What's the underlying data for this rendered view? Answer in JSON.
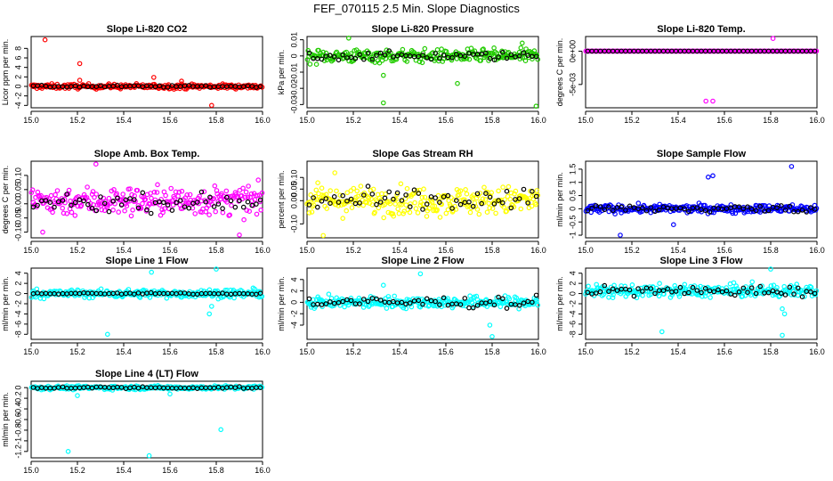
{
  "figure_title": "FEF_070115  2.5 Min. Slope Diagnostics",
  "chart_data": [
    {
      "type": "scatter",
      "title": "Slope Li-820 CO2",
      "ylabel": "Licor ppm per min.",
      "xlim": [
        15.0,
        16.0
      ],
      "ylim": [
        -4.5,
        10.5
      ],
      "yticks": [
        -4,
        -2,
        0,
        2,
        4,
        6,
        8
      ],
      "xticks": [
        15.0,
        15.2,
        15.4,
        15.6,
        15.8,
        16.0
      ],
      "color": "#ff0000",
      "band_center": 0.0,
      "band_spread": 0.5,
      "black_center": 0.0,
      "black_spread": 0.2,
      "outliers": [
        [
          15.06,
          9.8
        ],
        [
          15.21,
          4.8
        ],
        [
          15.53,
          1.9
        ],
        [
          15.78,
          -4.0
        ],
        [
          15.21,
          1.3
        ],
        [
          15.65,
          1.1
        ]
      ]
    },
    {
      "type": "scatter",
      "title": "Slope Li-820 Pressure",
      "ylabel": "kPa per min.",
      "xlim": [
        15.0,
        16.0
      ],
      "ylim": [
        -0.032,
        0.012
      ],
      "yticks": [
        -0.03,
        -0.02,
        -0.01,
        0.0,
        0.01
      ],
      "xticks": [
        15.0,
        15.2,
        15.4,
        15.6,
        15.8,
        16.0
      ],
      "color": "#22cc00",
      "band_center": 0.0,
      "band_spread": 0.004,
      "black_center": 0.0,
      "black_spread": 0.0025,
      "outliers": [
        [
          15.33,
          -0.029
        ],
        [
          15.99,
          -0.031
        ],
        [
          15.93,
          0.008
        ],
        [
          15.18,
          0.011
        ],
        [
          15.33,
          -0.012
        ],
        [
          15.65,
          -0.017
        ]
      ]
    },
    {
      "type": "scatter",
      "title": "Slope Li-820 Temp.",
      "ylabel": "degrees C per min.",
      "xlim": [
        15.0,
        16.0
      ],
      "ylim": [
        -0.0085,
        0.0022
      ],
      "yticks": [
        -0.005,
        0.0
      ],
      "ytick_labels": [
        "-5e-03",
        "0e+00"
      ],
      "xticks": [
        15.0,
        15.2,
        15.4,
        15.6,
        15.8,
        16.0
      ],
      "color": "#ff00ff",
      "band_center": 0.0,
      "band_spread": 0.0,
      "black_center": 0.0,
      "black_spread": 0.0,
      "outliers": [
        [
          15.52,
          -0.0075
        ],
        [
          15.55,
          -0.0075
        ],
        [
          15.81,
          0.0019
        ]
      ]
    },
    {
      "type": "scatter",
      "title": "Slope Amb. Box Temp.",
      "ylabel": "degrees C per min.",
      "xlim": [
        15.0,
        16.0
      ],
      "ylim": [
        -0.12,
        0.15
      ],
      "yticks": [
        -0.1,
        -0.05,
        0.0,
        0.05,
        0.1
      ],
      "ytick_labels": [
        "-0.10",
        "-0.05",
        "0.00",
        "0.05",
        "0.10"
      ],
      "xticks": [
        15.0,
        15.2,
        15.4,
        15.6,
        15.8,
        16.0
      ],
      "color": "#ff00ff",
      "band_center": 0.01,
      "band_spread": 0.05,
      "black_center": 0.005,
      "black_spread": 0.03,
      "outliers": [
        [
          15.28,
          0.14
        ],
        [
          15.9,
          -0.11
        ],
        [
          15.05,
          -0.1
        ]
      ]
    },
    {
      "type": "scatter",
      "title": "Slope Gas Stream RH",
      "ylabel": "percent per min.",
      "xlim": [
        15.0,
        16.0
      ],
      "ylim": [
        -0.16,
        0.17
      ],
      "yticks": [
        -0.1,
        0.0,
        0.05,
        0.1
      ],
      "ytick_labels": [
        "-0.10",
        "0.00",
        "0.05",
        "0.10"
      ],
      "xticks": [
        15.0,
        15.2,
        15.4,
        15.6,
        15.8,
        16.0
      ],
      "color": "#ffff00",
      "band_center": 0.0,
      "band_spread": 0.06,
      "black_center": 0.0,
      "black_spread": 0.05,
      "outliers": [
        [
          15.07,
          -0.15
        ],
        [
          15.12,
          0.12
        ]
      ]
    },
    {
      "type": "scatter",
      "title": "Slope Sample Flow",
      "ylabel": "ml/min per min.",
      "xlim": [
        15.0,
        16.0
      ],
      "ylim": [
        -1.1,
        1.8
      ],
      "yticks": [
        -1.0,
        -0.5,
        0.0,
        0.5,
        1.0,
        1.5
      ],
      "xticks": [
        15.0,
        15.2,
        15.4,
        15.6,
        15.8,
        16.0
      ],
      "color": "#0000ff",
      "band_center": 0.0,
      "band_spread": 0.15,
      "black_center": 0.0,
      "black_spread": 0.15,
      "outliers": [
        [
          15.53,
          1.2
        ],
        [
          15.55,
          1.25
        ],
        [
          15.89,
          1.6
        ],
        [
          15.15,
          -1.0
        ],
        [
          15.38,
          -0.6
        ]
      ]
    },
    {
      "type": "scatter",
      "title": "Slope Line 1 Flow",
      "ylabel": "ml/min per min.",
      "xlim": [
        15.0,
        16.0
      ],
      "ylim": [
        -9,
        5
      ],
      "yticks": [
        -8,
        -6,
        -4,
        -2,
        0,
        2,
        4
      ],
      "xticks": [
        15.0,
        15.2,
        15.4,
        15.6,
        15.8,
        16.0
      ],
      "color": "#00ffff",
      "band_center": 0.0,
      "band_spread": 0.8,
      "black_center": 0.0,
      "black_spread": 0.15,
      "outliers": [
        [
          15.33,
          -8.0
        ],
        [
          15.8,
          4.8
        ],
        [
          15.52,
          4.2
        ],
        [
          15.77,
          -4.0
        ],
        [
          15.78,
          -2.5
        ]
      ]
    },
    {
      "type": "scatter",
      "title": "Slope Line 2 Flow",
      "ylabel": "ml/min per min.",
      "xlim": [
        15.0,
        16.0
      ],
      "ylim": [
        -6.5,
        6
      ],
      "yticks": [
        -4,
        -2,
        0,
        2,
        4
      ],
      "xticks": [
        15.0,
        15.2,
        15.4,
        15.6,
        15.8,
        16.0
      ],
      "color": "#00ffff",
      "band_center": 0.0,
      "band_spread": 1.0,
      "black_center": 0.0,
      "black_spread": 1.0,
      "outliers": [
        [
          15.8,
          -6.0
        ],
        [
          15.49,
          5.0
        ],
        [
          15.33,
          3.0
        ],
        [
          15.79,
          -4.0
        ]
      ]
    },
    {
      "type": "scatter",
      "title": "Slope Line 3 Flow",
      "ylabel": "ml/min per min.",
      "xlim": [
        15.0,
        16.0
      ],
      "ylim": [
        -9,
        5
      ],
      "yticks": [
        -8,
        -6,
        -4,
        -2,
        0,
        2,
        4
      ],
      "xticks": [
        15.0,
        15.2,
        15.4,
        15.6,
        15.8,
        16.0
      ],
      "color": "#00ffff",
      "band_center": 0.5,
      "band_spread": 1.2,
      "black_center": 0.5,
      "black_spread": 1.0,
      "outliers": [
        [
          15.33,
          -7.5
        ],
        [
          15.85,
          -8.2
        ],
        [
          15.8,
          4.8
        ],
        [
          15.86,
          -4.0
        ],
        [
          15.85,
          -3.0
        ]
      ]
    },
    {
      "type": "scatter",
      "title": "Slope Line 4 (LT) Flow",
      "ylabel": "ml/min per min.",
      "xlim": [
        15.0,
        16.0
      ],
      "ylim": [
        -1.32,
        0.12
      ],
      "yticks": [
        -1.2,
        -1.0,
        -0.8,
        -0.6,
        -0.4,
        -0.2,
        0.0
      ],
      "xticks": [
        15.0,
        15.2,
        15.4,
        15.6,
        15.8,
        16.0
      ],
      "color": "#00ffff",
      "band_center": 0.0,
      "band_spread": 0.035,
      "black_center": 0.0,
      "black_spread": 0.02,
      "outliers": [
        [
          15.16,
          -1.2
        ],
        [
          15.51,
          -1.28
        ],
        [
          15.82,
          -0.79
        ],
        [
          15.2,
          -0.15
        ],
        [
          15.6,
          -0.12
        ]
      ]
    }
  ]
}
